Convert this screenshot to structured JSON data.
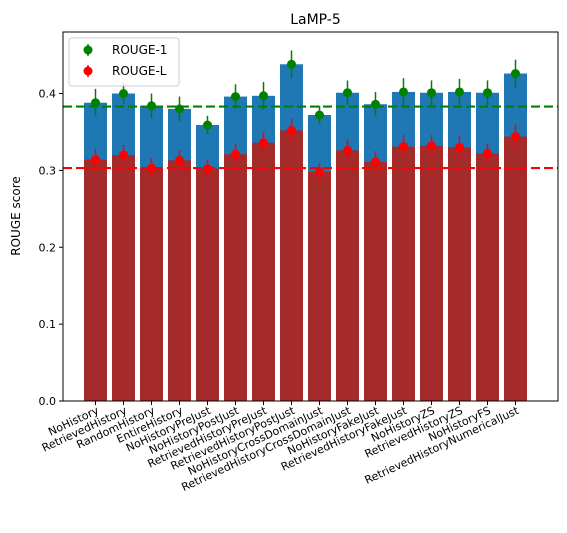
{
  "chart_data": {
    "type": "bar",
    "title": "LaMP-5",
    "xlabel": "",
    "ylabel": "ROUGE score",
    "ylim": [
      0,
      0.48
    ],
    "yticks": [
      0.0,
      0.1,
      0.2,
      0.3,
      0.4
    ],
    "ytick_labels": [
      "0.0",
      "0.1",
      "0.2",
      "0.3",
      "0.4"
    ],
    "grid": false,
    "legend_position": "top-left",
    "categories": [
      "NoHistory",
      "RetrievedHistory",
      "RandomHistory",
      "EntireHistory",
      "NoHistoryPreJust",
      "NoHistoryPostJust",
      "RetrievedHistoryPreJust",
      "RetrievedHistoryPostJust",
      "NoHistoryCrossDomainJust",
      "RetrievedHistoryCrossDomainJust",
      "NoHistoryFakeJust",
      "RetrievedHistoryFakeJust",
      "NoHistoryZS",
      "RetrievedHistoryZS",
      "NoHistoryFS",
      "RetrievedHistoryNumericalJust"
    ],
    "series": [
      {
        "name": "ROUGE-1",
        "bar_color": "#1f77b4",
        "marker_color": "#008000",
        "values": [
          0.388,
          0.4,
          0.384,
          0.38,
          0.359,
          0.396,
          0.397,
          0.438,
          0.372,
          0.401,
          0.386,
          0.402,
          0.401,
          0.402,
          0.401,
          0.426
        ],
        "errors": [
          0.018,
          0.014,
          0.016,
          0.016,
          0.012,
          0.016,
          0.018,
          0.018,
          0.012,
          0.016,
          0.016,
          0.018,
          0.016,
          0.017,
          0.016,
          0.018
        ],
        "mean_line": 0.383
      },
      {
        "name": "ROUGE-L",
        "bar_color": "#a52a2a",
        "marker_color": "#ff0000",
        "values": [
          0.314,
          0.32,
          0.303,
          0.313,
          0.302,
          0.321,
          0.336,
          0.352,
          0.298,
          0.326,
          0.311,
          0.331,
          0.332,
          0.33,
          0.322,
          0.344
        ],
        "errors": [
          0.014,
          0.013,
          0.013,
          0.013,
          0.012,
          0.013,
          0.014,
          0.015,
          0.011,
          0.014,
          0.014,
          0.015,
          0.014,
          0.015,
          0.013,
          0.016
        ],
        "mean_line": 0.303
      }
    ]
  }
}
